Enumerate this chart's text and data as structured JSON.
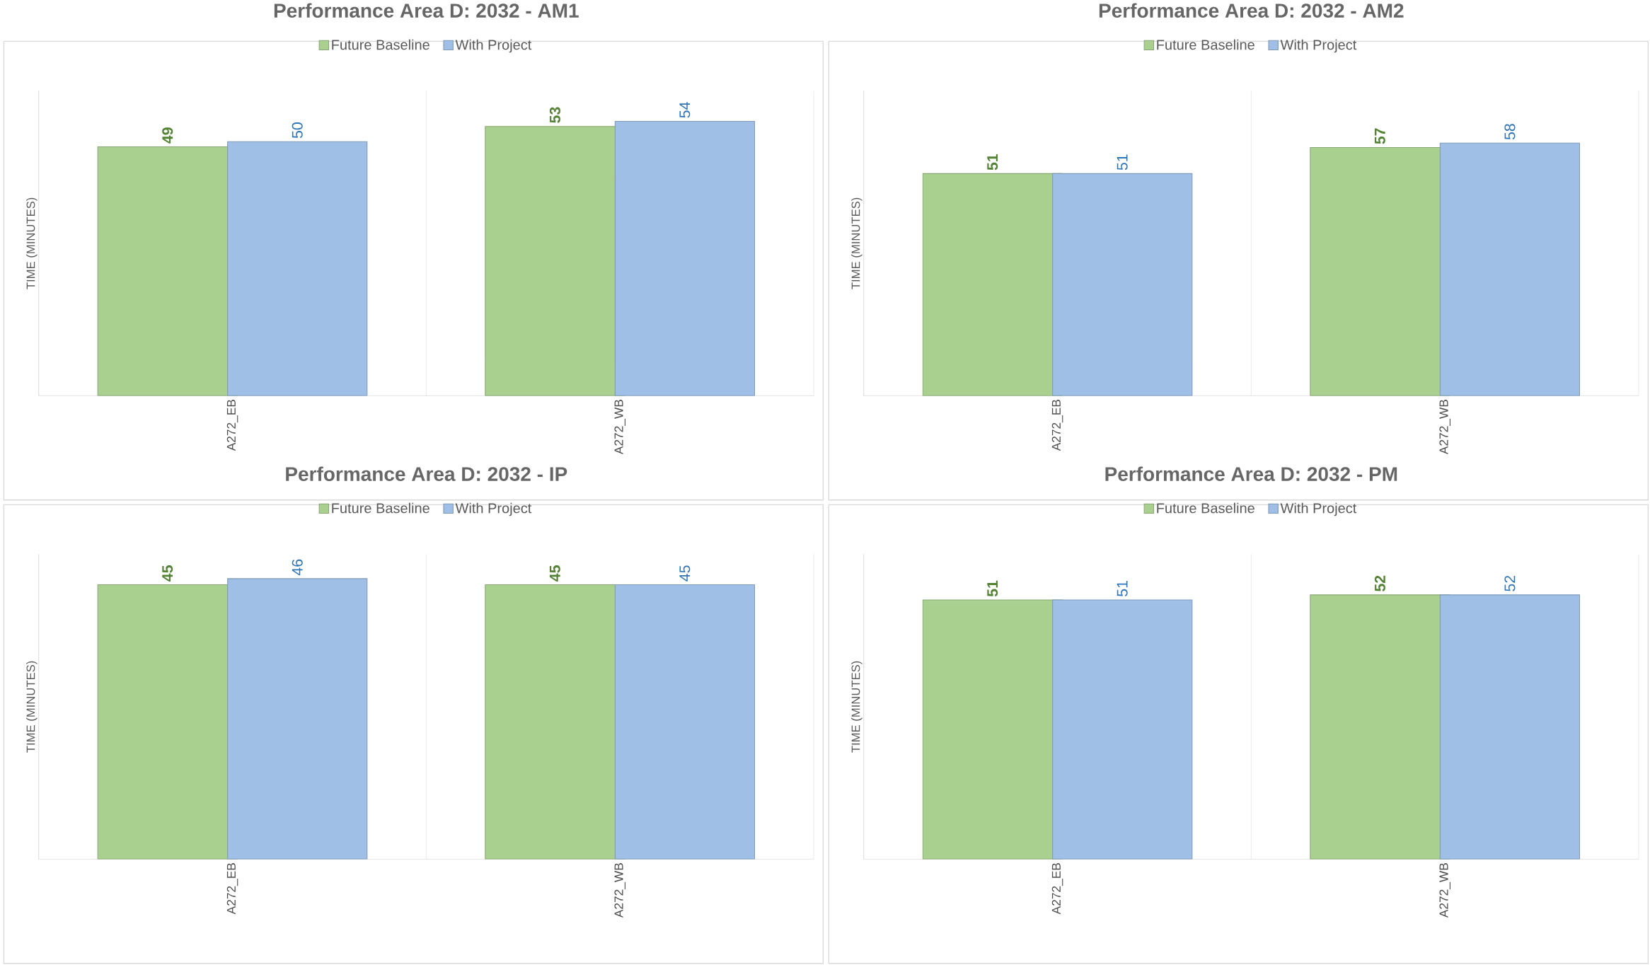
{
  "chart_data": [
    {
      "type": "bar",
      "title": "Performance Area D: 2032 - AM1",
      "ylabel": "TIME (MINUTES)",
      "categories": [
        "A272_EB",
        "A272_WB"
      ],
      "ylim": [
        0,
        60
      ],
      "tick_labels": "x",
      "grid": "x",
      "legend": "top",
      "data_labels": true,
      "series": [
        {
          "name": "Future Baseline",
          "color": "#a9d08e",
          "values": [
            49,
            53
          ]
        },
        {
          "name": "With Project",
          "color": "#9fbfe6",
          "values": [
            50,
            54
          ]
        }
      ]
    },
    {
      "type": "bar",
      "title": "Performance Area D: 2032 - AM2",
      "ylabel": "TIME (MINUTES)",
      "categories": [
        "A272_EB",
        "A272_WB"
      ],
      "ylim": [
        0,
        70
      ],
      "tick_labels": "x",
      "grid": "x",
      "legend": "top",
      "data_labels": true,
      "series": [
        {
          "name": "Future Baseline",
          "color": "#a9d08e",
          "values": [
            51,
            57
          ]
        },
        {
          "name": "With Project",
          "color": "#9fbfe6",
          "values": [
            51,
            58
          ]
        }
      ]
    },
    {
      "type": "bar",
      "title": "Performance Area D: 2032 - IP",
      "ylabel": "TIME (MINUTES)",
      "categories": [
        "A272_EB",
        "A272_WB"
      ],
      "ylim": [
        0,
        50
      ],
      "tick_labels": "x",
      "grid": "x",
      "legend": "top",
      "data_labels": true,
      "series": [
        {
          "name": "Future Baseline",
          "color": "#a9d08e",
          "values": [
            45,
            45
          ]
        },
        {
          "name": "With Project",
          "color": "#9fbfe6",
          "values": [
            46,
            45
          ]
        }
      ]
    },
    {
      "type": "bar",
      "title": "Performance Area D: 2032 - PM",
      "ylabel": "TIME (MINUTES)",
      "categories": [
        "A272_EB",
        "A272_WB"
      ],
      "ylim": [
        0,
        60
      ],
      "tick_labels": "x",
      "grid": "x",
      "legend": "top",
      "data_labels": true,
      "series": [
        {
          "name": "Future Baseline",
          "color": "#a9d08e",
          "values": [
            51,
            52
          ]
        },
        {
          "name": "With Project",
          "color": "#9fbfe6",
          "values": [
            51,
            52
          ]
        }
      ]
    }
  ]
}
